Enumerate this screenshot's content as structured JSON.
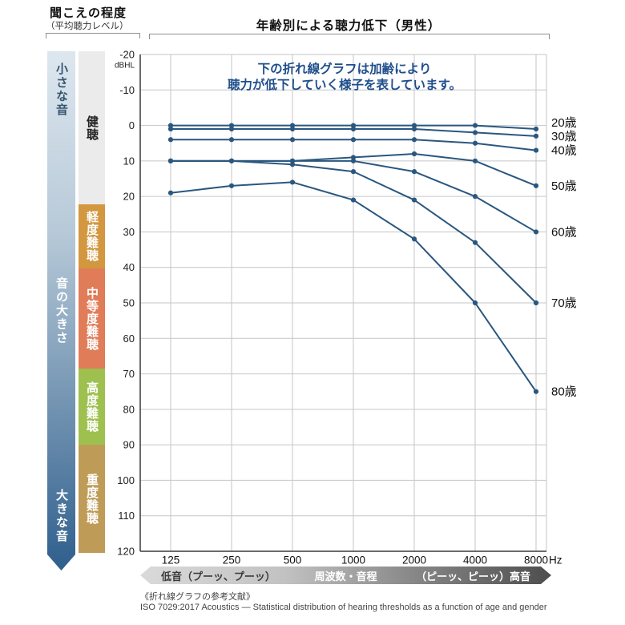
{
  "header": {
    "degree_title": "聞こえの程度",
    "degree_subtitle": "（平均聴力レベル）",
    "chart_title": "年齢別による聴力低下（男性）"
  },
  "volume_scale": {
    "top": "小さな音",
    "middle": "音の大きさ",
    "bottom": "大きな音",
    "gradient_top_color": "#dde7ef",
    "gradient_bottom_color": "#2f5f8d"
  },
  "hearing_levels": [
    {
      "label": "健聴",
      "bg": "#ebebeb",
      "fg": "#222222"
    },
    {
      "label": "軽度難聴",
      "bg": "#d2973f",
      "fg": "#ffffff"
    },
    {
      "label": "中等度難聴",
      "bg": "#e17c59",
      "fg": "#ffffff"
    },
    {
      "label": "高度難聴",
      "bg": "#9dc04f",
      "fg": "#ffffff"
    },
    {
      "label": "重度難聴",
      "bg": "#bf9b58",
      "fg": "#ffffff"
    }
  ],
  "annotation": {
    "line1": "下の折れ線グラフは加齢により",
    "line2": "聴力が低下していく様子を表しています。",
    "color": "#1f4e8c"
  },
  "chart_data": {
    "type": "line",
    "title": "年齢別による聴力低下（男性）",
    "x_tick_labels": [
      "125",
      "250",
      "500",
      "1000",
      "2000",
      "4000",
      "8000"
    ],
    "x_unit": "Hz",
    "y_unit": "dBHL",
    "ylim": [
      -20,
      120
    ],
    "y_tick_step": 10,
    "grid": true,
    "legend_position": "right-of-line-ends",
    "line_color": "#2a577f",
    "series": [
      {
        "name": "20歳",
        "values": [
          0,
          0,
          0,
          0,
          0,
          0,
          1
        ]
      },
      {
        "name": "30歳",
        "values": [
          1,
          1,
          1,
          1,
          1,
          2,
          3
        ]
      },
      {
        "name": "40歳",
        "values": [
          4,
          4,
          4,
          4,
          4,
          5,
          7
        ]
      },
      {
        "name": "50歳",
        "values": [
          10,
          10,
          10,
          9,
          8,
          10,
          17
        ]
      },
      {
        "name": "60歳",
        "values": [
          10,
          10,
          10,
          10,
          13,
          20,
          30
        ]
      },
      {
        "name": "70歳",
        "values": [
          10,
          10,
          11,
          13,
          21,
          33,
          50
        ]
      },
      {
        "name": "80歳",
        "values": [
          19,
          17,
          16,
          21,
          32,
          50,
          75
        ]
      }
    ]
  },
  "frequency_axis": {
    "left_label": "低音（プーッ、プーッ）",
    "center_label": "周波数・音程",
    "right_label": "（ピーッ、ピーッ）高音"
  },
  "footer": {
    "reference_heading": "《折れ線グラフの参考文献》",
    "reference_text": "ISO 7029:2017 Acoustics — Statistical distribution of hearing thresholds as a function of age and gender"
  }
}
